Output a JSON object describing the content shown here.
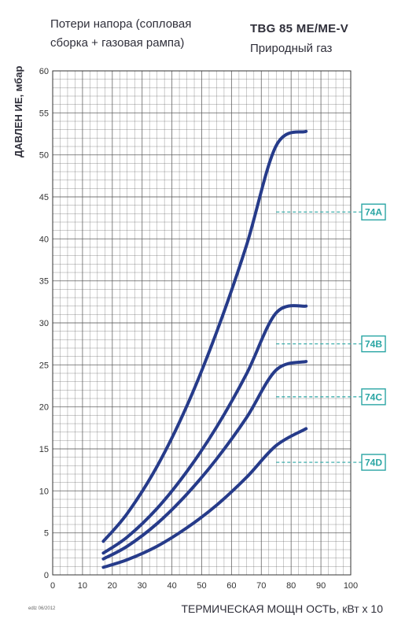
{
  "header": {
    "title_line1": "Потери напора (сопловая",
    "title_line2": "сборка + газовая рампа)",
    "model": "TBG 85 ME/ME-V",
    "fuel": "Природный газ"
  },
  "footnote": "edlz 06/2012",
  "colors": {
    "curve": "#263b8a",
    "grid": "#555555",
    "accent": "#2aa6a4"
  },
  "chart_data": {
    "type": "line",
    "xlabel": "ТЕРМИЧЕСКАЯ МОЩН ОСТЬ, кВт x 10",
    "ylabel": "ДАВЛЕН ИЕ, мбар",
    "xlim": [
      0,
      100
    ],
    "ylim": [
      0,
      60
    ],
    "x_ticks": [
      0,
      10,
      20,
      30,
      40,
      50,
      60,
      70,
      80,
      90,
      100
    ],
    "y_ticks": [
      0,
      5,
      10,
      15,
      20,
      25,
      30,
      35,
      40,
      45,
      50,
      55,
      60
    ],
    "grid": true,
    "series": [
      {
        "name": "74A",
        "x": [
          17,
          25,
          35,
          45,
          55,
          65,
          75,
          85
        ],
        "y": [
          4.0,
          7.3,
          12.9,
          20.1,
          28.9,
          39.2,
          51.1,
          52.8
        ]
      },
      {
        "name": "74B",
        "x": [
          17,
          25,
          35,
          45,
          55,
          65,
          75,
          85
        ],
        "y": [
          2.6,
          4.5,
          7.9,
          12.3,
          17.6,
          23.9,
          31.2,
          32.0
        ]
      },
      {
        "name": "74C",
        "x": [
          17,
          25,
          35,
          45,
          55,
          65,
          75,
          85
        ],
        "y": [
          1.9,
          3.4,
          6.1,
          9.6,
          13.8,
          18.7,
          24.4,
          25.4
        ]
      },
      {
        "name": "74D",
        "x": [
          17,
          25,
          35,
          45,
          55,
          65,
          75,
          85
        ],
        "y": [
          0.9,
          1.8,
          3.4,
          5.6,
          8.3,
          11.6,
          15.4,
          17.4
        ]
      }
    ],
    "callouts": [
      {
        "label": "74A",
        "x": 75,
        "y": 43.2
      },
      {
        "label": "74B",
        "x": 75,
        "y": 27.5
      },
      {
        "label": "74C",
        "x": 75,
        "y": 21.2
      },
      {
        "label": "74D",
        "x": 75,
        "y": 13.4
      }
    ]
  }
}
